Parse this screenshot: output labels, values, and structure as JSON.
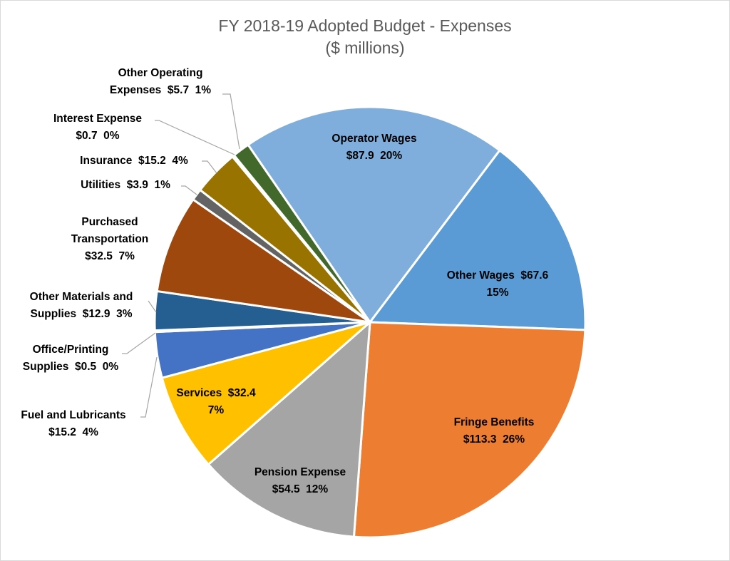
{
  "chart_data": {
    "type": "pie",
    "title": "FY 2018-19 Adopted Budget - Expenses",
    "subtitle": "($ millions)",
    "legend": "none (data labels with leader lines)",
    "slices": [
      {
        "name": "Operator Wages",
        "value": 87.9,
        "percent": "20%",
        "color": "#7FAEDC"
      },
      {
        "name": "Other Wages",
        "value": 67.6,
        "percent": "15%",
        "color": "#5B9BD5"
      },
      {
        "name": "Fringe Benefits",
        "value": 113.3,
        "percent": "26%",
        "color": "#ED7D31"
      },
      {
        "name": "Pension Expense",
        "value": 54.5,
        "percent": "12%",
        "color": "#A5A5A5"
      },
      {
        "name": "Services",
        "value": 32.4,
        "percent": "7%",
        "color": "#FFC000"
      },
      {
        "name": "Fuel and Lubricants",
        "value": 15.2,
        "percent": "4%",
        "color": "#4472C4"
      },
      {
        "name": "Office/Printing Supplies",
        "value": 0.5,
        "percent": "0%",
        "color": "#70AD47"
      },
      {
        "name": "Other Materials and Supplies",
        "value": 12.9,
        "percent": "3%",
        "color": "#255E91"
      },
      {
        "name": "Purchased Transportation",
        "value": 32.5,
        "percent": "7%",
        "color": "#9E480E"
      },
      {
        "name": "Utilities",
        "value": 3.9,
        "percent": "1%",
        "color": "#636363"
      },
      {
        "name": "Insurance",
        "value": 15.2,
        "percent": "4%",
        "color": "#997300"
      },
      {
        "name": "Interest Expense",
        "value": 0.7,
        "percent": "0%",
        "color": "#264478"
      },
      {
        "name": "Other Operating Expenses",
        "value": 5.7,
        "percent": "1%",
        "color": "#43682B"
      }
    ]
  }
}
